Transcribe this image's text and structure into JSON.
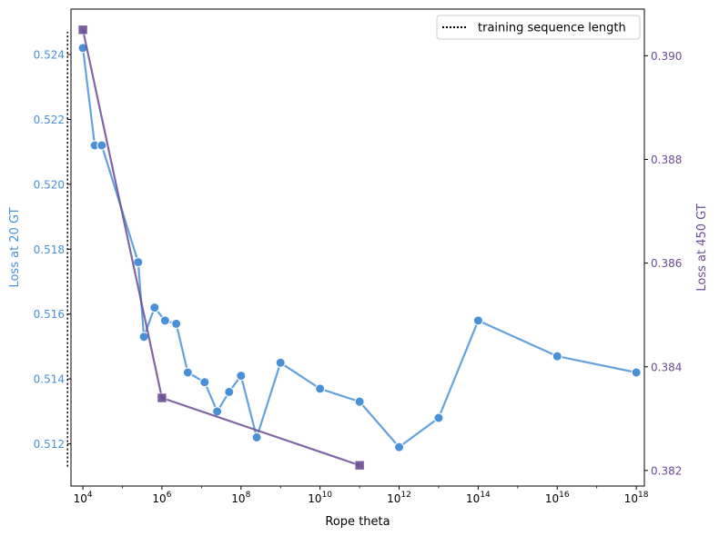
{
  "chart_data": {
    "type": "line",
    "xlabel": "Rope theta",
    "xscale": "log",
    "xlim": [
      5000,
      1.6e+18
    ],
    "xticks": [
      {
        "value": 10000,
        "base": "10",
        "exp": "4"
      },
      {
        "value": 1000000,
        "base": "10",
        "exp": "6"
      },
      {
        "value": 100000000,
        "base": "10",
        "exp": "8"
      },
      {
        "value": 10000000000,
        "base": "10",
        "exp": "10"
      },
      {
        "value": 1000000000000,
        "base": "10",
        "exp": "12"
      },
      {
        "value": 100000000000000,
        "base": "10",
        "exp": "14"
      },
      {
        "value": 10000000000000000,
        "base": "10",
        "exp": "16"
      },
      {
        "value": 1000000000000000000,
        "base": "10",
        "exp": "18"
      }
    ],
    "left_axis": {
      "label": "Loss at 20 GT",
      "color": "#4a90d9",
      "ylim": [
        0.5107,
        0.5254
      ],
      "ticks": [
        0.512,
        0.514,
        0.516,
        0.518,
        0.52,
        0.522,
        0.524
      ],
      "tick_labels": [
        "0.512",
        "0.514",
        "0.516",
        "0.518",
        "0.520",
        "0.522",
        "0.524"
      ]
    },
    "right_axis": {
      "label": "Loss at 450 GT",
      "color": "#6a4c93",
      "ylim": [
        0.3817,
        0.3909
      ],
      "ticks": [
        0.382,
        0.384,
        0.386,
        0.388,
        0.39
      ],
      "tick_labels": [
        "0.382",
        "0.384",
        "0.386",
        "0.388",
        "0.390"
      ]
    },
    "series": [
      {
        "axis": "left",
        "color": "#4a90d9",
        "marker": "circle",
        "x": [
          10000,
          20000,
          30000,
          250000,
          350000,
          650000,
          1200000,
          2300000,
          4500000,
          12000000,
          25000000,
          50000000,
          100000000,
          250000000,
          1000000000,
          10000000000,
          100000000000,
          1000000000000,
          10000000000000,
          100000000000000,
          10000000000000000,
          1000000000000000000
        ],
        "y": [
          0.5242,
          0.5212,
          0.5212,
          0.5176,
          0.5153,
          0.5162,
          0.5158,
          0.5157,
          0.5142,
          0.5139,
          0.513,
          0.5136,
          0.5141,
          0.5122,
          0.5145,
          0.5137,
          0.5133,
          0.5119,
          0.5128,
          0.5158,
          0.5147,
          0.5142
        ]
      },
      {
        "axis": "right",
        "color": "#6a4c93",
        "marker": "square",
        "x": [
          10000,
          1000000,
          100000000000
        ],
        "y": [
          0.3905,
          0.3834,
          0.3821
        ]
      }
    ],
    "reference_line": {
      "label": "training sequence length",
      "x": 4096,
      "style": "dotted",
      "color": "#000000",
      "y_from": 0.5113,
      "y_to": 0.5247
    },
    "legend": {
      "placement": "top-right",
      "entries": [
        "training sequence length"
      ]
    },
    "grid": false
  }
}
